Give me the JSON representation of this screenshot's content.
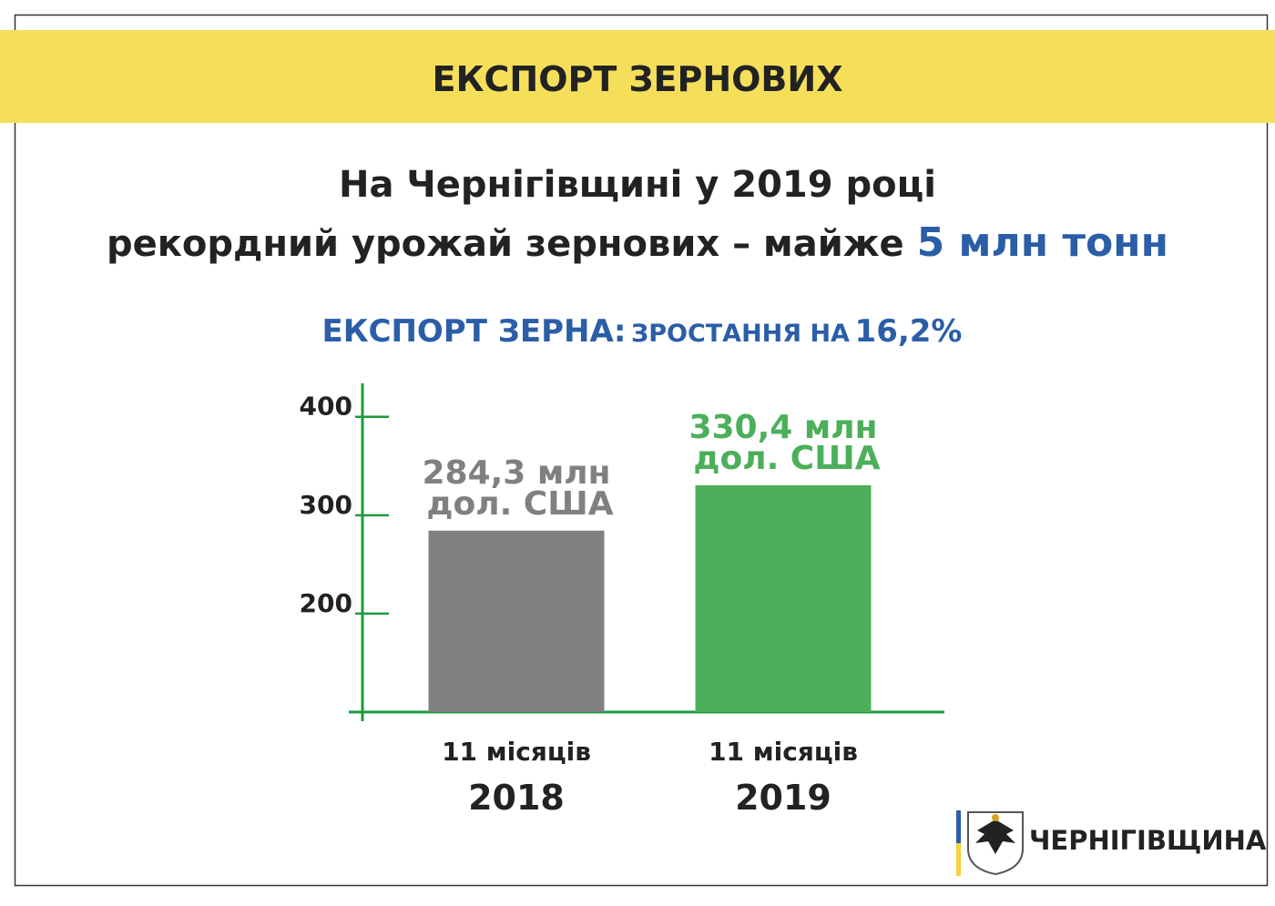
{
  "chart_data": {
    "type": "bar",
    "title": "ЕКСПОРТ ЗЕРНОВИХ",
    "headline": {
      "line1": "На Чернігівщині у 2019 році",
      "line2": "рекордний урожай зернових – майже",
      "highlight": "5 млн тонн"
    },
    "subtitle": {
      "lead": "ЕКСПОРТ ЗЕРНА:",
      "middle": "ЗРОСТАННЯ НА",
      "figure": "16,2%"
    },
    "categories": [
      [
        "11 місяців",
        "2018"
      ],
      [
        "11 місяців",
        "2019"
      ]
    ],
    "values": [
      284.3,
      330.4
    ],
    "value_labels": [
      [
        "284,3 млн",
        "дол. США"
      ],
      [
        "330,4 млн",
        "дол. США"
      ]
    ],
    "colors": [
      "#808080",
      "#4caf5a"
    ],
    "ylim": [
      100,
      434
    ],
    "yticks": [
      200,
      300,
      400
    ],
    "axis_color": "#1e9a3c",
    "logo": "ЧЕРНІГІВЩИНА"
  }
}
